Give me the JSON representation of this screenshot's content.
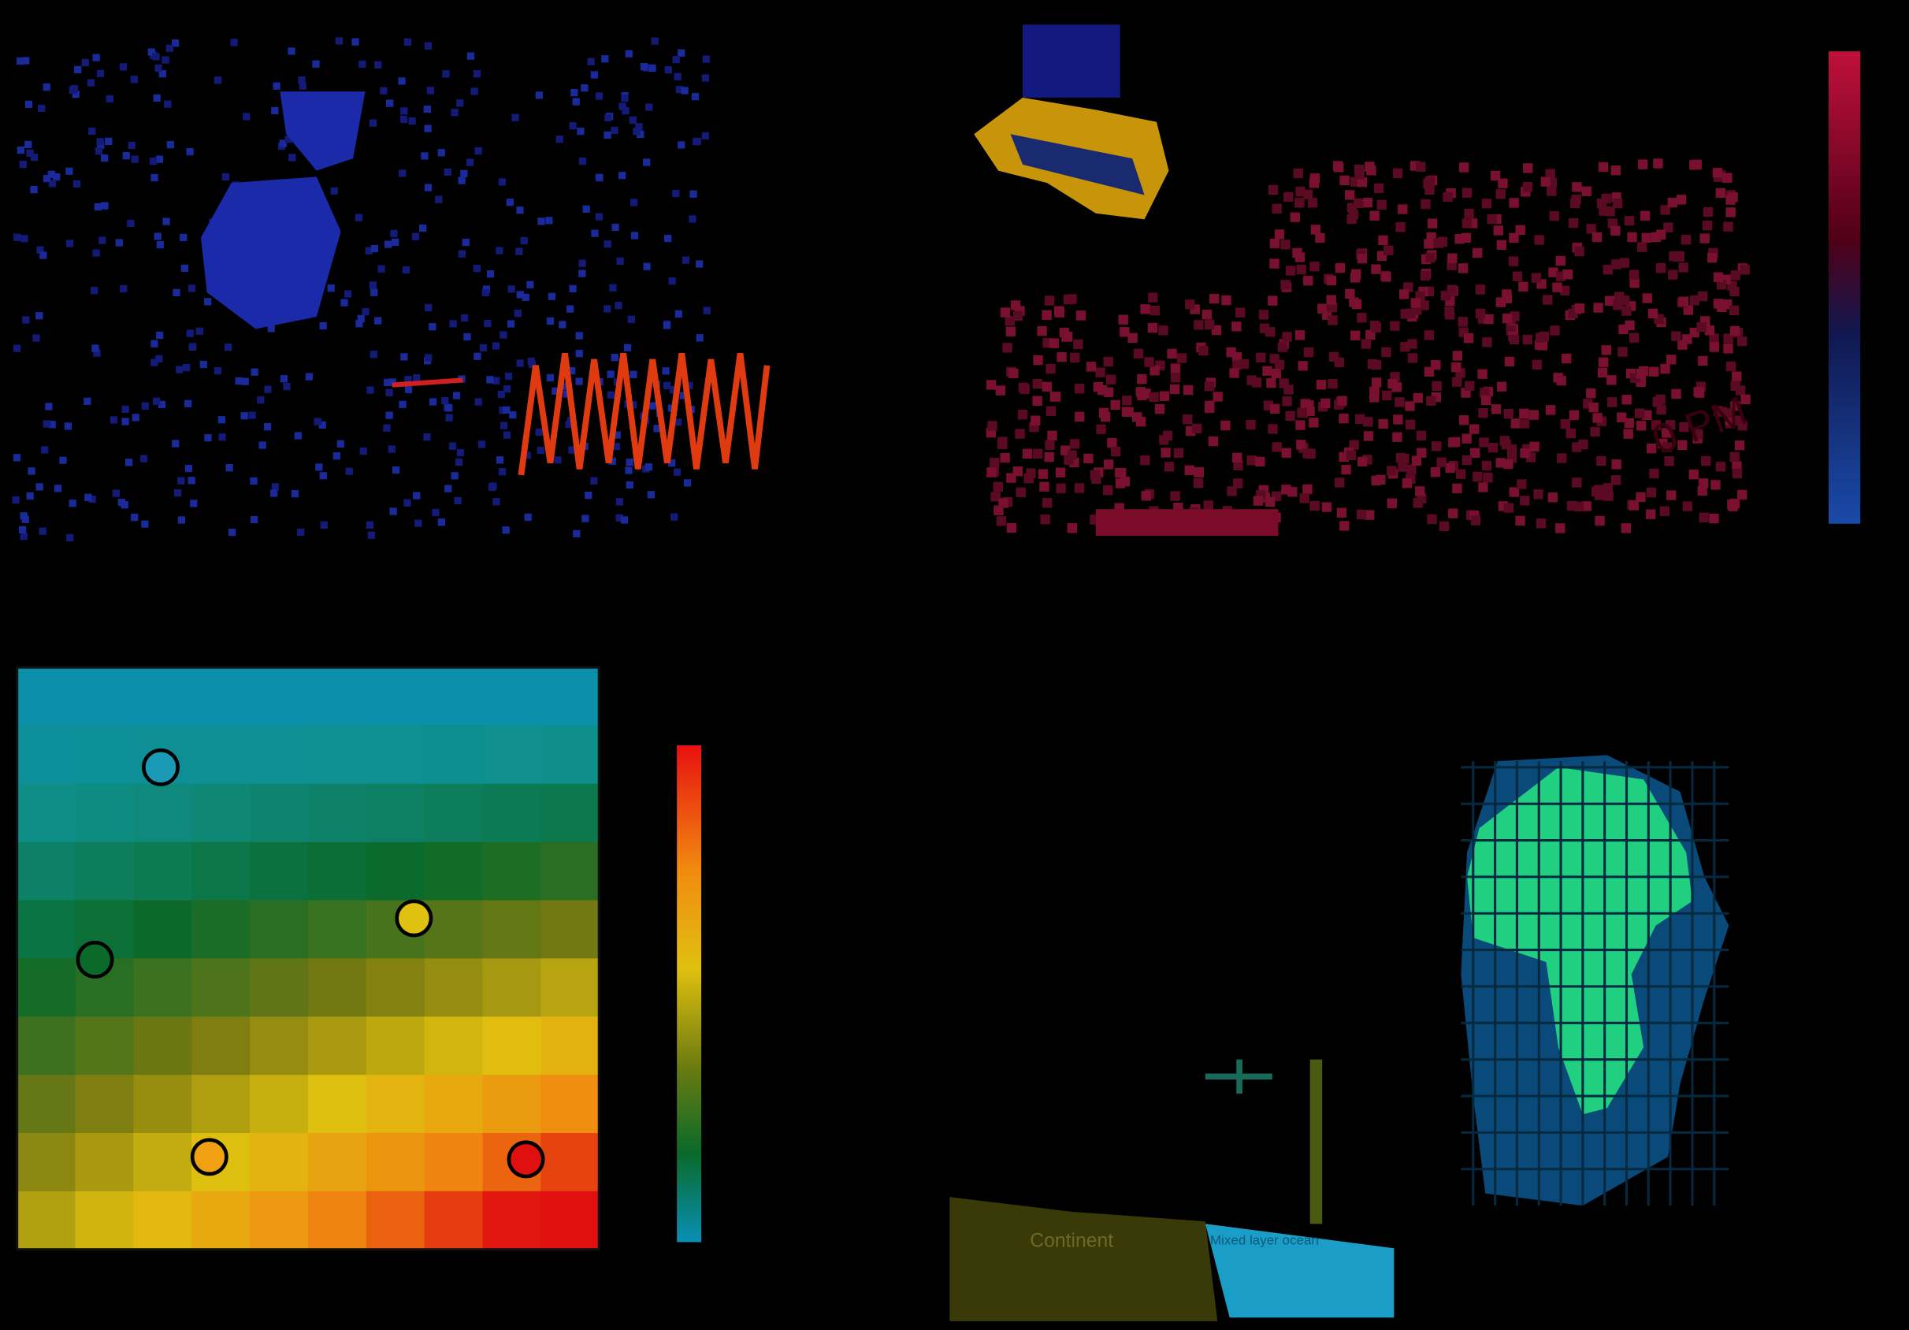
{
  "panels": {
    "ocean_schematic": {
      "continent_label": "Continent",
      "ocean_label": "Mixed layer ocean"
    },
    "map_panel": {
      "annotation": "0 PM"
    }
  }
}
